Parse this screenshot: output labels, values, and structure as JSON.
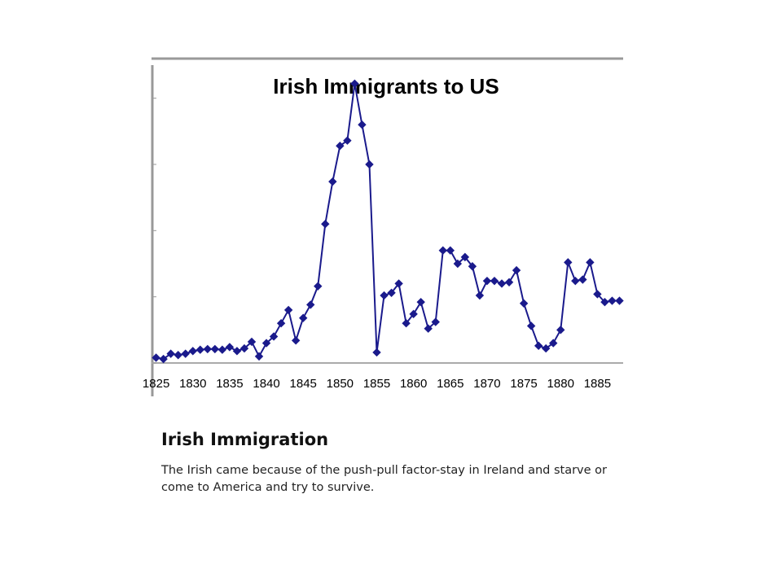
{
  "caption": {
    "title": "Irish Immigration",
    "body": "The Irish came because of the push-pull factor-stay in Ireland and starve or come to America and try to survive."
  },
  "colors": {
    "series": "#1a1a8c",
    "axis": "#999999",
    "text": "#000000"
  },
  "chart_data": {
    "type": "line",
    "title": "Irish Immigrants to US",
    "xlabel": "",
    "ylabel": "",
    "grid": false,
    "legend": "none",
    "xlim": [
      1824.6,
      1888.5
    ],
    "ylim": [
      0,
      225000
    ],
    "x_tick_labels": [
      "1825",
      "1830",
      "1835",
      "1840",
      "1845",
      "1850",
      "1855",
      "1860",
      "1865",
      "1870",
      "1875",
      "1880",
      "1885"
    ],
    "series": [
      {
        "marker": "diamond",
        "points": [
          [
            1825,
            4000
          ],
          [
            1826,
            3000
          ],
          [
            1827,
            7000
          ],
          [
            1828,
            6000
          ],
          [
            1829,
            7000
          ],
          [
            1830,
            9000
          ],
          [
            1831,
            10000
          ],
          [
            1832,
            10500
          ],
          [
            1833,
            10500
          ],
          [
            1834,
            10000
          ],
          [
            1835,
            12000
          ],
          [
            1836,
            9000
          ],
          [
            1837,
            11000
          ],
          [
            1838,
            16000
          ],
          [
            1839,
            5000
          ],
          [
            1840,
            15000
          ],
          [
            1841,
            20000
          ],
          [
            1842,
            30000
          ],
          [
            1843,
            40000
          ],
          [
            1844,
            17000
          ],
          [
            1845,
            34000
          ],
          [
            1846,
            44000
          ],
          [
            1847,
            58000
          ],
          [
            1848,
            105000
          ],
          [
            1849,
            137000
          ],
          [
            1850,
            164000
          ],
          [
            1851,
            168000
          ],
          [
            1852,
            211000
          ],
          [
            1853,
            180000
          ],
          [
            1854,
            150000
          ],
          [
            1855,
            8000
          ],
          [
            1856,
            51000
          ],
          [
            1857,
            53000
          ],
          [
            1858,
            60000
          ],
          [
            1859,
            30000
          ],
          [
            1860,
            37000
          ],
          [
            1861,
            46000
          ],
          [
            1862,
            26000
          ],
          [
            1863,
            31000
          ],
          [
            1864,
            85000
          ],
          [
            1865,
            85000
          ],
          [
            1866,
            75000
          ],
          [
            1867,
            80000
          ],
          [
            1868,
            73000
          ],
          [
            1869,
            51000
          ],
          [
            1870,
            62000
          ],
          [
            1871,
            62000
          ],
          [
            1872,
            60000
          ],
          [
            1873,
            61000
          ],
          [
            1874,
            70000
          ],
          [
            1875,
            45000
          ],
          [
            1876,
            28000
          ],
          [
            1877,
            13000
          ],
          [
            1878,
            11000
          ],
          [
            1879,
            15000
          ],
          [
            1880,
            25000
          ],
          [
            1881,
            76000
          ],
          [
            1882,
            62000
          ],
          [
            1883,
            63000
          ],
          [
            1884,
            76000
          ],
          [
            1885,
            52000
          ],
          [
            1886,
            46000
          ],
          [
            1887,
            47000
          ],
          [
            1888,
            47000
          ]
        ]
      }
    ]
  }
}
